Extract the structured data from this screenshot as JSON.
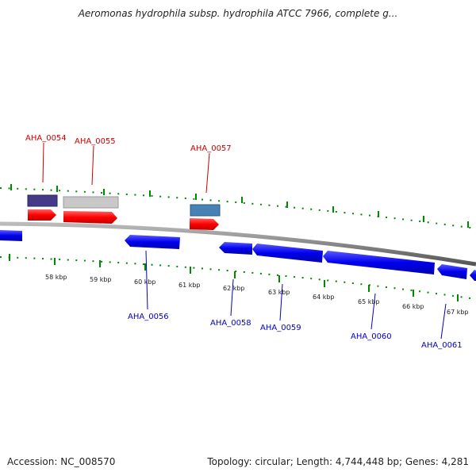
{
  "title": "Aeromonas hydrophila subsp. hydrophila ATCC 7966, complete g...",
  "footer": {
    "accession": "Accession: NC_008570",
    "info": "Topology: circular; Length: 4,744,448 bp; Genes: 4,281"
  },
  "colors": {
    "forward_cds": "#ff0000",
    "reverse_cds": "#0000ee",
    "backbone": "#888888",
    "tick": "#008800",
    "forward_label": "#cc0000",
    "reverse_label": "#0000cc",
    "feature_dark": "#443a88",
    "feature_gray": "#c8c8c8",
    "feature_steel": "#4682b4"
  },
  "scale_labels": [
    "58 kbp",
    "59 kbp",
    "60 kbp",
    "61 kbp",
    "62 kbp",
    "63 kbp",
    "64 kbp",
    "65 kbp",
    "66 kbp",
    "67 kbp"
  ],
  "forward_genes": [
    "AHA_0054",
    "AHA_0055",
    "AHA_0057"
  ],
  "reverse_genes": [
    "AHA_0056",
    "AHA_0058",
    "AHA_0059",
    "AHA_0060",
    "AHA_0061"
  ]
}
